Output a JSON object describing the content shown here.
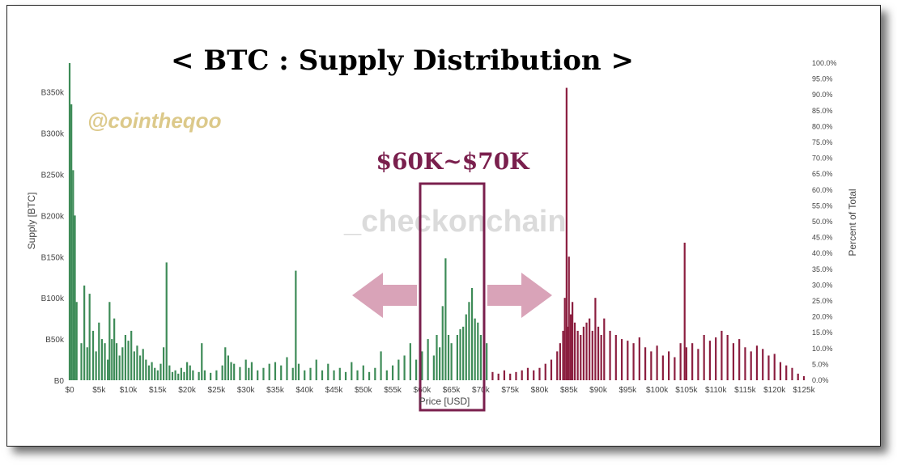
{
  "chart_data": {
    "type": "bar",
    "title": "< BTC : Supply Distribution >",
    "watermark": "@cointheqoo",
    "logo": "_checkonchain",
    "annotation": "$60K~$70K",
    "xlabel": "Price [USD]",
    "ylabel": "Supply [BTC]",
    "y2label": "Percent of Total",
    "xlim": [
      0,
      125000
    ],
    "ylim": [
      0,
      385000
    ],
    "y2lim": [
      0,
      100
    ],
    "x_ticks": [
      "$0",
      "$5k",
      "$10k",
      "$15k",
      "$20k",
      "$25k",
      "$30k",
      "$35k",
      "$40k",
      "$45k",
      "$50k",
      "$55k",
      "$60k",
      "$65k",
      "$70k",
      "$75k",
      "$80k",
      "$85k",
      "$90k",
      "$95k",
      "$100k",
      "$105k",
      "$110k",
      "$115k",
      "$120k",
      "$125k"
    ],
    "y_ticks": [
      "B0",
      "B50k",
      "B100k",
      "B150k",
      "B200k",
      "B250k",
      "B300k",
      "B350k"
    ],
    "y_tick_values": [
      0,
      50000,
      100000,
      150000,
      200000,
      250000,
      300000,
      350000
    ],
    "y2_ticks": [
      "0.0%",
      "5.0%",
      "10.0%",
      "15.0%",
      "20.0%",
      "25.0%",
      "30.0%",
      "35.0%",
      "40.0%",
      "45.0%",
      "50.0%",
      "55.0%",
      "60.0%",
      "65.0%",
      "70.0%",
      "75.0%",
      "80.0%",
      "85.0%",
      "90.0%",
      "95.0%",
      "100.0%"
    ],
    "highlight_range": [
      60000,
      70000
    ],
    "split_price": 71500,
    "colors": {
      "below": "#3d8b57",
      "above": "#8b1e3f",
      "annotation": "#7a1f4d",
      "arrow": "#d9a3b8",
      "watermark": "#dcc98a",
      "logo_accent": "#e8b04a",
      "logo_text": "#d8d8d8"
    },
    "series": [
      {
        "values": [
          [
            0,
            385000
          ],
          [
            300,
            335000
          ],
          [
            600,
            255000
          ],
          [
            900,
            200000
          ],
          [
            1200,
            95000
          ],
          [
            2000,
            45000
          ],
          [
            2500,
            115000
          ],
          [
            3000,
            40000
          ],
          [
            3400,
            105000
          ],
          [
            4000,
            60000
          ],
          [
            4500,
            35000
          ],
          [
            5000,
            70000
          ],
          [
            5500,
            50000
          ],
          [
            6000,
            45000
          ],
          [
            6500,
            25000
          ],
          [
            6800,
            95000
          ],
          [
            7200,
            50000
          ],
          [
            7600,
            75000
          ],
          [
            8000,
            45000
          ],
          [
            8500,
            30000
          ],
          [
            9000,
            40000
          ],
          [
            9500,
            55000
          ],
          [
            10000,
            48000
          ],
          [
            10500,
            60000
          ],
          [
            11000,
            35000
          ],
          [
            11500,
            42000
          ],
          [
            12000,
            30000
          ],
          [
            12500,
            38000
          ],
          [
            13000,
            25000
          ],
          [
            13500,
            18000
          ],
          [
            14000,
            22000
          ],
          [
            14500,
            15000
          ],
          [
            15000,
            12000
          ],
          [
            15500,
            20000
          ],
          [
            16000,
            40000
          ],
          [
            16500,
            143000
          ],
          [
            17000,
            18000
          ],
          [
            17500,
            10000
          ],
          [
            18000,
            12000
          ],
          [
            18500,
            8000
          ],
          [
            19000,
            15000
          ],
          [
            19500,
            10000
          ],
          [
            20000,
            22000
          ],
          [
            20500,
            18000
          ],
          [
            21000,
            12000
          ],
          [
            22000,
            10000
          ],
          [
            22500,
            45000
          ],
          [
            23000,
            12000
          ],
          [
            24000,
            9000
          ],
          [
            25000,
            12000
          ],
          [
            26000,
            18000
          ],
          [
            26500,
            40000
          ],
          [
            27000,
            30000
          ],
          [
            27500,
            22000
          ],
          [
            28000,
            20000
          ],
          [
            29000,
            16000
          ],
          [
            30000,
            25000
          ],
          [
            30500,
            15000
          ],
          [
            31000,
            22000
          ],
          [
            32000,
            12000
          ],
          [
            33000,
            15000
          ],
          [
            34000,
            20000
          ],
          [
            35000,
            22000
          ],
          [
            36000,
            18000
          ],
          [
            37000,
            28000
          ],
          [
            38000,
            15000
          ],
          [
            38500,
            133000
          ],
          [
            39000,
            20000
          ],
          [
            40000,
            12000
          ],
          [
            41000,
            15000
          ],
          [
            42000,
            25000
          ],
          [
            43000,
            12000
          ],
          [
            44000,
            20000
          ],
          [
            45000,
            12000
          ],
          [
            46000,
            15000
          ],
          [
            47000,
            10000
          ],
          [
            48000,
            22000
          ],
          [
            49000,
            12000
          ],
          [
            50000,
            18000
          ],
          [
            51000,
            10000
          ],
          [
            52000,
            15000
          ],
          [
            53000,
            35000
          ],
          [
            54000,
            12000
          ],
          [
            55000,
            18000
          ],
          [
            56000,
            25000
          ],
          [
            57000,
            30000
          ],
          [
            58000,
            45000
          ],
          [
            59000,
            25000
          ],
          [
            60000,
            35000
          ],
          [
            61000,
            50000
          ],
          [
            62000,
            30000
          ],
          [
            62500,
            55000
          ],
          [
            63000,
            40000
          ],
          [
            63500,
            90000
          ],
          [
            64000,
            148000
          ],
          [
            64500,
            55000
          ],
          [
            65000,
            45000
          ],
          [
            66000,
            55000
          ],
          [
            66500,
            62000
          ],
          [
            67000,
            65000
          ],
          [
            67500,
            80000
          ],
          [
            68000,
            95000
          ],
          [
            68500,
            112000
          ],
          [
            69000,
            75000
          ],
          [
            69500,
            70000
          ],
          [
            70000,
            55000
          ],
          [
            70500,
            85000
          ],
          [
            71000,
            45000
          ]
        ]
      },
      {
        "values": [
          [
            72000,
            10000
          ],
          [
            73000,
            8000
          ],
          [
            74000,
            12000
          ],
          [
            75000,
            8000
          ],
          [
            76000,
            10000
          ],
          [
            77000,
            12000
          ],
          [
            78000,
            15000
          ],
          [
            79000,
            12000
          ],
          [
            80000,
            15000
          ],
          [
            81000,
            20000
          ],
          [
            82000,
            25000
          ],
          [
            83000,
            35000
          ],
          [
            83500,
            45000
          ],
          [
            84000,
            60000
          ],
          [
            84300,
            100000
          ],
          [
            84600,
            355000
          ],
          [
            84800,
            65000
          ],
          [
            85000,
            150000
          ],
          [
            85300,
            80000
          ],
          [
            85600,
            95000
          ],
          [
            86000,
            70000
          ],
          [
            86500,
            60000
          ],
          [
            87000,
            55000
          ],
          [
            87500,
            65000
          ],
          [
            88000,
            70000
          ],
          [
            88500,
            75000
          ],
          [
            89000,
            60000
          ],
          [
            89500,
            100000
          ],
          [
            90000,
            65000
          ],
          [
            90500,
            55000
          ],
          [
            91000,
            75000
          ],
          [
            92000,
            60000
          ],
          [
            93000,
            55000
          ],
          [
            94000,
            50000
          ],
          [
            95000,
            48000
          ],
          [
            96000,
            45000
          ],
          [
            97000,
            52000
          ],
          [
            98000,
            40000
          ],
          [
            99000,
            35000
          ],
          [
            100000,
            42000
          ],
          [
            101000,
            30000
          ],
          [
            102000,
            35000
          ],
          [
            103000,
            28000
          ],
          [
            104000,
            45000
          ],
          [
            104700,
            167000
          ],
          [
            105000,
            40000
          ],
          [
            106000,
            45000
          ],
          [
            107000,
            38000
          ],
          [
            108000,
            55000
          ],
          [
            109000,
            48000
          ],
          [
            110000,
            52000
          ],
          [
            111000,
            60000
          ],
          [
            112000,
            55000
          ],
          [
            113000,
            45000
          ],
          [
            114000,
            50000
          ],
          [
            115000,
            40000
          ],
          [
            116000,
            35000
          ],
          [
            117000,
            42000
          ],
          [
            118000,
            38000
          ],
          [
            119000,
            30000
          ],
          [
            120000,
            32000
          ],
          [
            121000,
            22000
          ],
          [
            122000,
            18000
          ],
          [
            123000,
            15000
          ],
          [
            124000,
            8000
          ],
          [
            125000,
            5000
          ]
        ]
      }
    ]
  }
}
